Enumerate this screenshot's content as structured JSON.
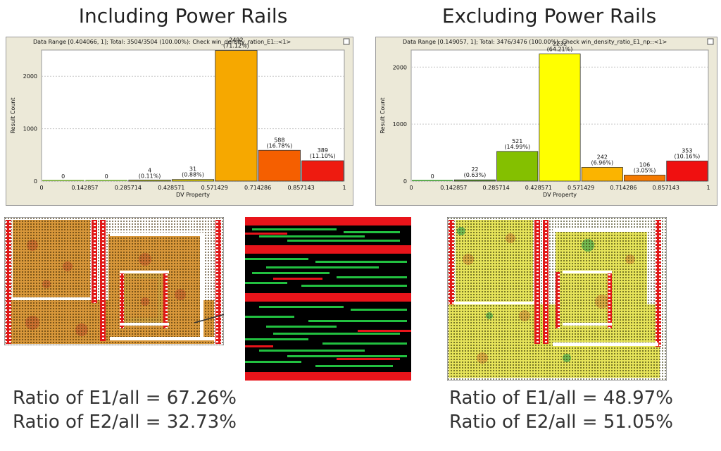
{
  "headings": {
    "left": "Including Power Rails",
    "right": "Excluding Power Rails"
  },
  "chart_data": [
    {
      "type": "bar",
      "header": "Data Range [0.404066, 1]; Total: 3504/3504 (100.00%):   Check win_density_ration_E1::<1>",
      "xlabel": "DV Property",
      "ylabel": "Result Count",
      "xlim": [
        0,
        1
      ],
      "ylim": [
        0,
        2500
      ],
      "x_ticks": [
        "0",
        "0.142857",
        "0.285714",
        "0.428571",
        "0.571429",
        "0.714286",
        "0.857143",
        "1"
      ],
      "y_ticks": [
        "0",
        "1000",
        "2000"
      ],
      "grid": true,
      "bins": [
        {
          "range": [
            0.0,
            0.142857
          ],
          "value": 0,
          "label": "0",
          "pct": "",
          "color": "#6fa82a"
        },
        {
          "range": [
            0.142857,
            0.285714
          ],
          "value": 0,
          "label": "0",
          "pct": "",
          "color": "#6fa82a"
        },
        {
          "range": [
            0.285714,
            0.428571
          ],
          "value": 4,
          "label": "4",
          "pct": "(0.11%)",
          "color": "#c6d400"
        },
        {
          "range": [
            0.428571,
            0.571429
          ],
          "value": 31,
          "label": "31",
          "pct": "(0.88%)",
          "color": "#e9d800"
        },
        {
          "range": [
            0.571429,
            0.714286
          ],
          "value": 2492,
          "label": "2492",
          "pct": "(71.12%)",
          "color": "#f6a800"
        },
        {
          "range": [
            0.714286,
            0.857143
          ],
          "value": 588,
          "label": "588",
          "pct": "(16.78%)",
          "color": "#f55f00"
        },
        {
          "range": [
            0.857143,
            1.0
          ],
          "value": 389,
          "label": "389",
          "pct": "(11.10%)",
          "color": "#ee1b10"
        }
      ]
    },
    {
      "type": "bar",
      "header": "Data Range [0.149057, 1]; Total: 3476/3476 (100.00%):   Check win_density_ratio_E1_np::<1>",
      "xlabel": "DV Property",
      "ylabel": "Result Count",
      "xlim": [
        0,
        1
      ],
      "ylim": [
        0,
        2300
      ],
      "x_ticks": [
        "0",
        "0.142857",
        "0.285714",
        "0.428571",
        "0.571429",
        "0.714286",
        "0.857143",
        "1"
      ],
      "y_ticks": [
        "0",
        "1000",
        "2000"
      ],
      "grid": true,
      "bins": [
        {
          "range": [
            0.0,
            0.142857
          ],
          "value": 0,
          "label": "0",
          "pct": "",
          "color": "#3a9a2a"
        },
        {
          "range": [
            0.142857,
            0.285714
          ],
          "value": 22,
          "label": "22",
          "pct": "(0.63%)",
          "color": "#5aa820"
        },
        {
          "range": [
            0.285714,
            0.428571
          ],
          "value": 521,
          "label": "521",
          "pct": "(14.99%)",
          "color": "#84c000"
        },
        {
          "range": [
            0.428571,
            0.571429
          ],
          "value": 2232,
          "label": "2232",
          "pct": "(64.21%)",
          "color": "#ffff00"
        },
        {
          "range": [
            0.571429,
            0.714286
          ],
          "value": 242,
          "label": "242",
          "pct": "(6.96%)",
          "color": "#fbb400"
        },
        {
          "range": [
            0.714286,
            0.857143
          ],
          "value": 106,
          "label": "106",
          "pct": "(3.05%)",
          "color": "#f57a00"
        },
        {
          "range": [
            0.857143,
            1.0
          ],
          "value": 353,
          "label": "353",
          "pct": "(10.16%)",
          "color": "#f01010"
        }
      ]
    }
  ],
  "ratios": {
    "left": [
      "Ratio of E1/all = 67.26%",
      "Ratio of E2/all = 32.73%"
    ],
    "right": [
      "Ratio of E1/all = 48.97%",
      "Ratio of E2/all = 51.05%"
    ]
  },
  "colors": {
    "panel_bg": "#ece9d8",
    "map_left_fill": "#d89a38",
    "map_right_fill": "#e6e45a",
    "rail_red": "#e01818",
    "zoom_bg": "#000000",
    "zoom_green": "#22c040",
    "zoom_red": "#e8141a"
  }
}
